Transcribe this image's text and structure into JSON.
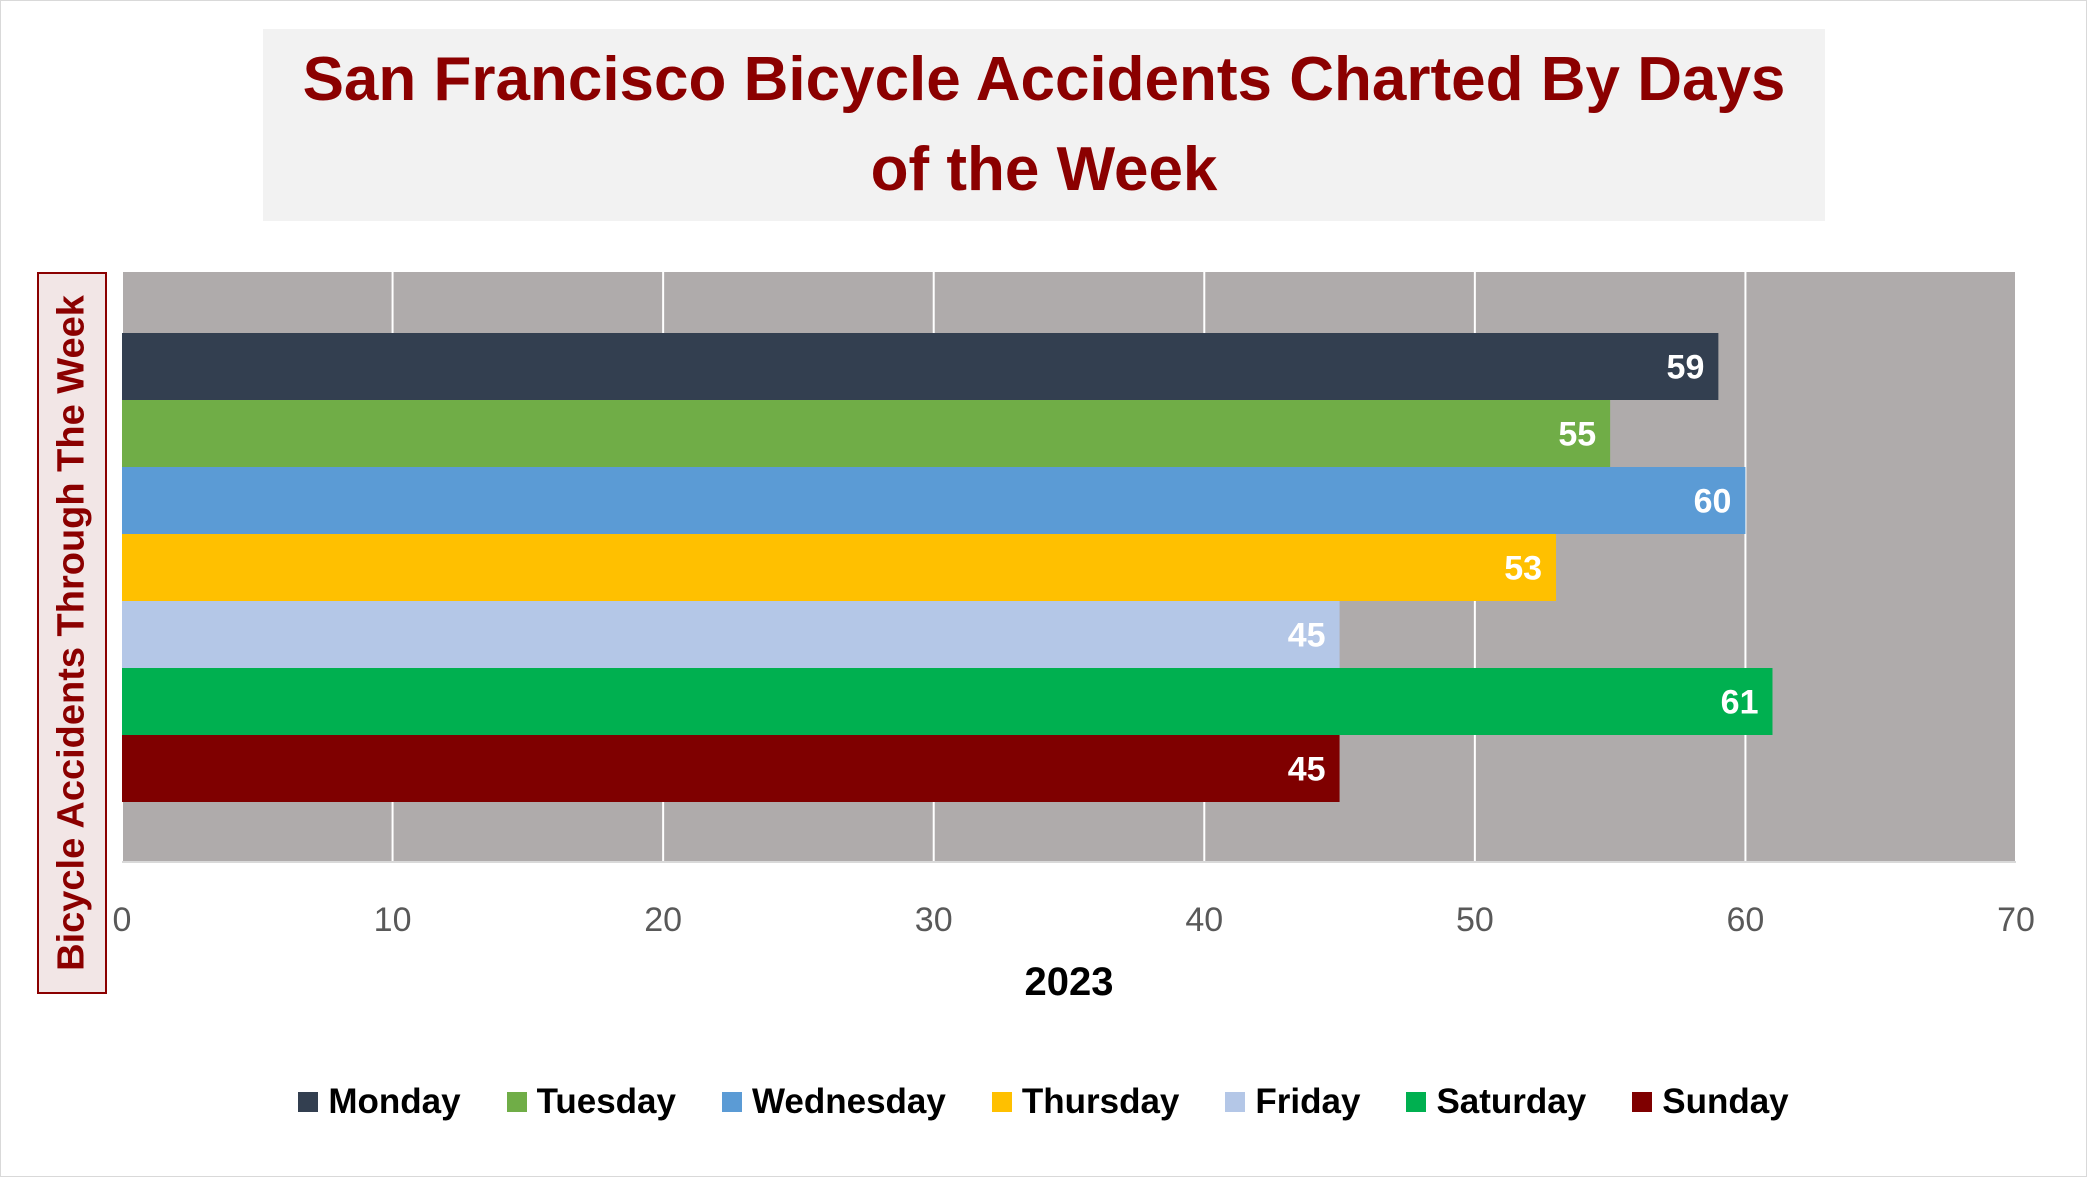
{
  "chart_data": {
    "type": "bar",
    "orientation": "horizontal",
    "title": "San Francisco Bicycle Accidents Charted By Days of the Week",
    "ylabel": "Bicycle Accidents Through The Week",
    "xlabel": "2023",
    "categories": [
      "2023"
    ],
    "xlim": [
      0,
      70
    ],
    "xticks": [
      0,
      10,
      20,
      30,
      40,
      50,
      60,
      70
    ],
    "grid": true,
    "legend_position": "bottom",
    "series": [
      {
        "name": "Monday",
        "values": [
          59
        ],
        "color": "#333f50"
      },
      {
        "name": "Tuesday",
        "values": [
          55
        ],
        "color": "#70ad47"
      },
      {
        "name": "Wednesday",
        "values": [
          60
        ],
        "color": "#5b9bd5"
      },
      {
        "name": "Thursday",
        "values": [
          53
        ],
        "color": "#ffc000"
      },
      {
        "name": "Friday",
        "values": [
          45
        ],
        "color": "#b4c7e7"
      },
      {
        "name": "Saturday",
        "values": [
          61
        ],
        "color": "#00b050"
      },
      {
        "name": "Sunday",
        "values": [
          45
        ],
        "color": "#7f0000"
      }
    ],
    "plot_background": "#afabab",
    "title_color": "#8b0000"
  }
}
